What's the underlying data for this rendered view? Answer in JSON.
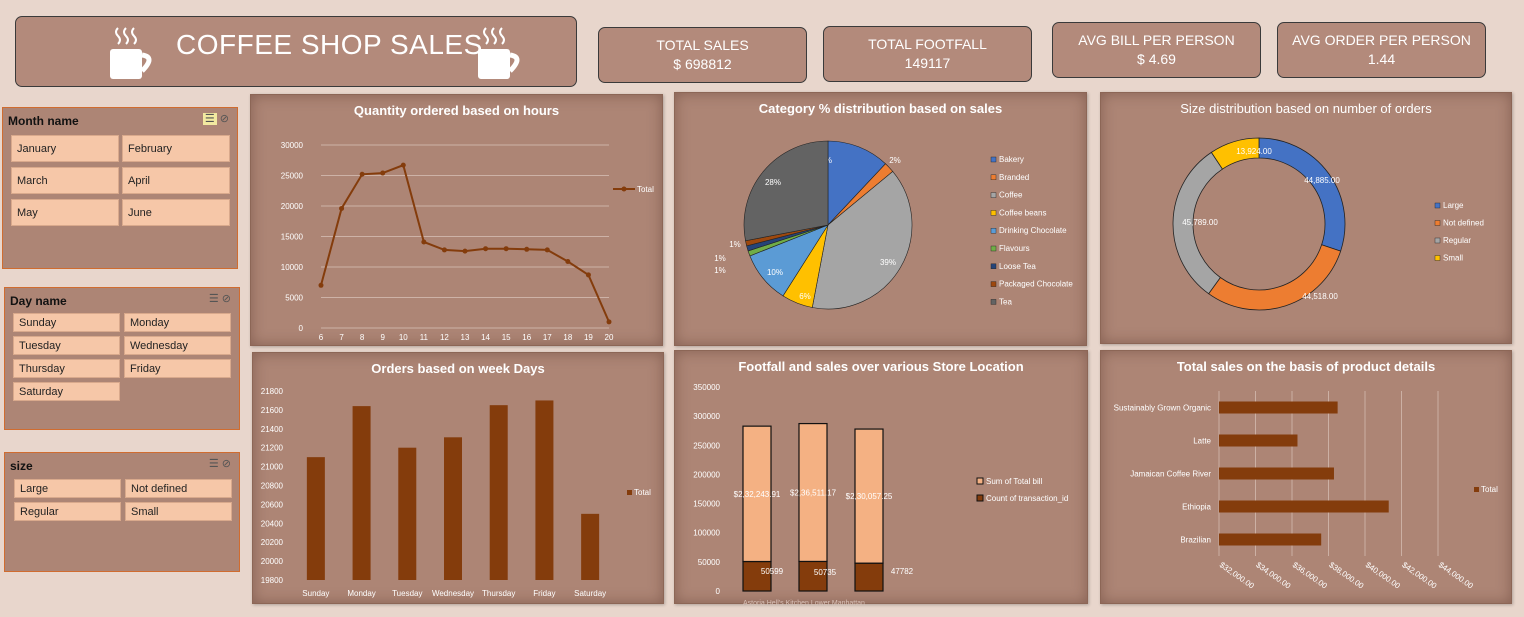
{
  "header": {
    "title": "COFFEE SHOP SALES",
    "icons": [
      "coffee-cup-icon",
      "coffee-cup-icon"
    ]
  },
  "kpis": [
    {
      "label": "TOTAL SALES",
      "value": "$ 698812"
    },
    {
      "label": "TOTAL FOOTFALL",
      "value": "149117"
    },
    {
      "label": "AVG BILL PER PERSON",
      "value": "$ 4.69"
    },
    {
      "label": "AVG ORDER PER PERSON",
      "value": "1.44"
    }
  ],
  "slicers": {
    "month": {
      "title": "Month name",
      "items": [
        "January",
        "February",
        "March",
        "April",
        "May",
        "June"
      ]
    },
    "day": {
      "title": "Day name",
      "items": [
        "Sunday",
        "Monday",
        "Tuesday",
        "Wednesday",
        "Thursday",
        "Friday",
        "Saturday"
      ]
    },
    "size": {
      "title": "size",
      "items": [
        "Large",
        "Not defined",
        "Regular",
        "Small"
      ]
    }
  },
  "colors": {
    "accent": "#7b3a10",
    "panel": "#ad8575",
    "background": "#e8d6cc",
    "bar_light": "#f4b183",
    "bar_dark": "#843c0c"
  },
  "chart_data": [
    {
      "id": "hours",
      "type": "line",
      "title": "Quantity ordered based on hours",
      "x": [
        6,
        7,
        8,
        9,
        10,
        11,
        12,
        13,
        14,
        15,
        16,
        17,
        18,
        19,
        20
      ],
      "series": [
        {
          "name": "Total",
          "values": [
            7000,
            19600,
            25200,
            25400,
            26700,
            14100,
            12800,
            12600,
            13000,
            13000,
            12900,
            12800,
            10900,
            8700,
            1000
          ]
        }
      ],
      "yticks": [
        "0",
        "5000",
        "10000",
        "15000",
        "20000",
        "25000",
        "30000"
      ],
      "ylim": [
        0,
        30000
      ],
      "legend": "right",
      "grid": true
    },
    {
      "id": "category",
      "type": "pie",
      "title": "Category % distribution based on sales",
      "categories": [
        "Bakery",
        "Branded",
        "Coffee",
        "Coffee beans",
        "Drinking Chocolate",
        "Flavours",
        "Loose Tea",
        "Packaged Chocolate",
        "Tea"
      ],
      "values": [
        12,
        2,
        39,
        6,
        10,
        1,
        1,
        1,
        28
      ],
      "labels": [
        "12%",
        "2%",
        "39%",
        "6%",
        "10%",
        "1%",
        "1%",
        "1%",
        "28%"
      ],
      "colors": [
        "#4472c4",
        "#ed7d31",
        "#a5a5a5",
        "#ffc000",
        "#5b9bd5",
        "#70ad47",
        "#264478",
        "#9e480e",
        "#636363"
      ],
      "legend": "right"
    },
    {
      "id": "size",
      "type": "pie",
      "title": "Size distribution based on number of orders",
      "categories": [
        "Large",
        "Not defined",
        "Regular",
        "Small"
      ],
      "values": [
        44885,
        44518,
        45789,
        13924
      ],
      "labels": [
        "44,885.00",
        "44,518.00",
        "45,789.00",
        "13,924.00"
      ],
      "colors": [
        "#4472c4",
        "#ed7d31",
        "#a5a5a5",
        "#ffc000"
      ],
      "legend": "right"
    },
    {
      "id": "weekdays",
      "type": "bar",
      "title": "Orders based on week Days",
      "categories": [
        "Sunday",
        "Monday",
        "Tuesday",
        "Wednesday",
        "Thursday",
        "Friday",
        "Saturday"
      ],
      "series": [
        {
          "name": "Total",
          "values": [
            21100,
            21640,
            21200,
            21310,
            21650,
            21700,
            20500
          ]
        }
      ],
      "yticks": [
        "19800",
        "20000",
        "20200",
        "20400",
        "20600",
        "20800",
        "21000",
        "21200",
        "21400",
        "21600",
        "21800"
      ],
      "ylim": [
        19800,
        21800
      ],
      "legend": "right",
      "grid": false
    },
    {
      "id": "location",
      "type": "bar",
      "title": "Footfall and sales over various Store Location",
      "categories": [
        "Astoria",
        "Hell's Kitchen",
        "Lower Manhattan"
      ],
      "tick_text": "Astoria      Hell's Kitchen   Lower Manhattan",
      "series": [
        {
          "name": "Sum of Total bill",
          "values": [
            232243.91,
            236511.17,
            230057.25
          ],
          "labels": [
            "$2,32,243.91",
            "$2,36,511.17",
            "$2,30,057.25"
          ]
        },
        {
          "name": "Count of transaction_id",
          "values": [
            50599,
            50735,
            47782
          ],
          "labels": [
            "50599",
            "50735",
            "47782"
          ]
        }
      ],
      "yticks": [
        "0",
        "50000",
        "100000",
        "150000",
        "200000",
        "250000",
        "300000",
        "350000"
      ],
      "ylim": [
        0,
        350000
      ],
      "stacked": true,
      "legend": "right"
    },
    {
      "id": "product",
      "type": "bar",
      "title": "Total sales on the basis of product details",
      "categories": [
        "Sustainably Grown Organic",
        "Latte",
        "Jamaican Coffee River",
        "Ethiopia",
        "Brazilian"
      ],
      "series": [
        {
          "name": "Total",
          "values": [
            38500,
            36300,
            38300,
            41300,
            37600
          ]
        }
      ],
      "xticks": [
        "$32,000.00",
        "$34,000.00",
        "$36,000.00",
        "$38,000.00",
        "$40,000.00",
        "$42,000.00",
        "$44,000.00"
      ],
      "xlim": [
        32000,
        44000
      ],
      "orientation": "horizontal",
      "legend": "right"
    }
  ]
}
